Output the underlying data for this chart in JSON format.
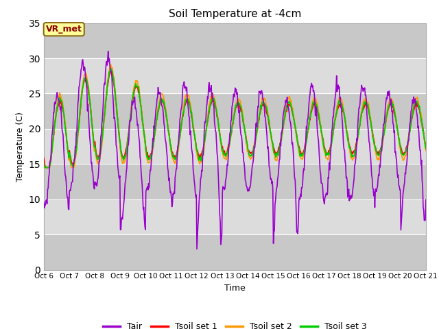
{
  "title": "Soil Temperature at -4cm",
  "xlabel": "Time",
  "ylabel": "Temperature (C)",
  "ylim": [
    0,
    35
  ],
  "yticks": [
    0,
    5,
    10,
    15,
    20,
    25,
    30,
    35
  ],
  "x_labels": [
    "Oct 6",
    "Oct 7",
    "Oct 8",
    "Oct 9",
    "Oct 10",
    "Oct 11",
    "Oct 12",
    "Oct 13",
    "Oct 14",
    "Oct 15",
    "Oct 16",
    "Oct 17",
    "Oct 18",
    "Oct 19",
    "Oct 20",
    "Oct 21"
  ],
  "annotation_text": "VR_met",
  "annotation_color": "#8B0000",
  "annotation_bg": "#FFFF99",
  "annotation_border": "#8B6914",
  "line_colors": {
    "Tair": "#9900CC",
    "Tsoil_set1": "#FF0000",
    "Tsoil_set2": "#FF9900",
    "Tsoil_set3": "#00CC00"
  },
  "legend_labels": [
    "Tair",
    "Tsoil set 1",
    "Tsoil set 2",
    "Tsoil set 3"
  ],
  "bg_color_light": "#DCDCDC",
  "bg_color_dark": "#C8C8C8",
  "fig_bg": "#FFFFFF",
  "grid_color": "#FFFFFF",
  "n_points": 720,
  "days": 15
}
